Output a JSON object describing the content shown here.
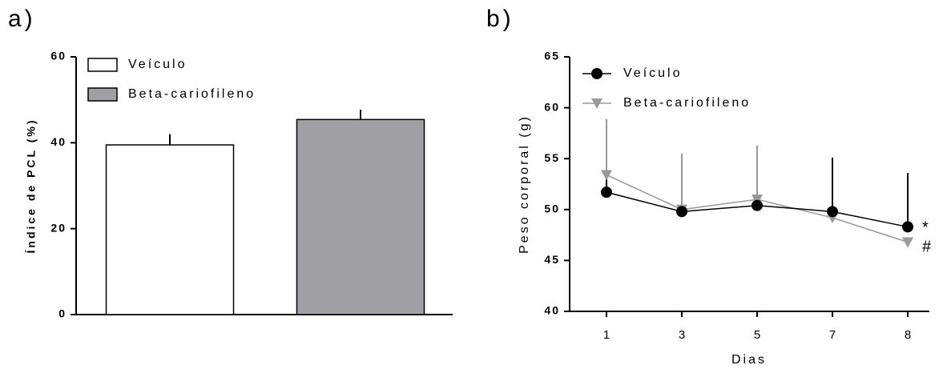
{
  "chart_data": [
    {
      "type": "bar",
      "label": "a)",
      "ylabel": "Índice de PCL (%)",
      "ylim": [
        0,
        60
      ],
      "yticks": [
        0,
        20,
        40,
        60
      ],
      "series": [
        {
          "name": "Veículo",
          "color": "#ffffff",
          "values": [
            39.5
          ],
          "errors": [
            2.5
          ]
        },
        {
          "name": "Beta-cariofileno",
          "color": "#a0a0a4",
          "values": [
            45.4
          ],
          "errors": [
            2.3
          ]
        }
      ]
    },
    {
      "type": "line",
      "label": "b)",
      "ylabel": "Peso corporal (g)",
      "xlabel": "Dias",
      "categories": [
        "1",
        "3",
        "5",
        "7",
        "8"
      ],
      "ylim": [
        40,
        65
      ],
      "yticks": [
        40,
        45,
        50,
        55,
        60,
        65
      ],
      "series": [
        {
          "name": "Veículo",
          "color": "#000000",
          "marker": "circle",
          "values": [
            51.7,
            49.8,
            50.4,
            49.8,
            48.3
          ],
          "errors": [
            5.5,
            5.5,
            5.3,
            5.3,
            5.3
          ]
        },
        {
          "name": "Beta-cariofileno",
          "color": "#999999",
          "marker": "triangle-down",
          "values": [
            53.4,
            50.0,
            51.0,
            49.2,
            46.8
          ],
          "errors": [
            5.5,
            5.5,
            5.3,
            0,
            0
          ]
        }
      ],
      "annotations": [
        "*",
        "#"
      ]
    }
  ]
}
